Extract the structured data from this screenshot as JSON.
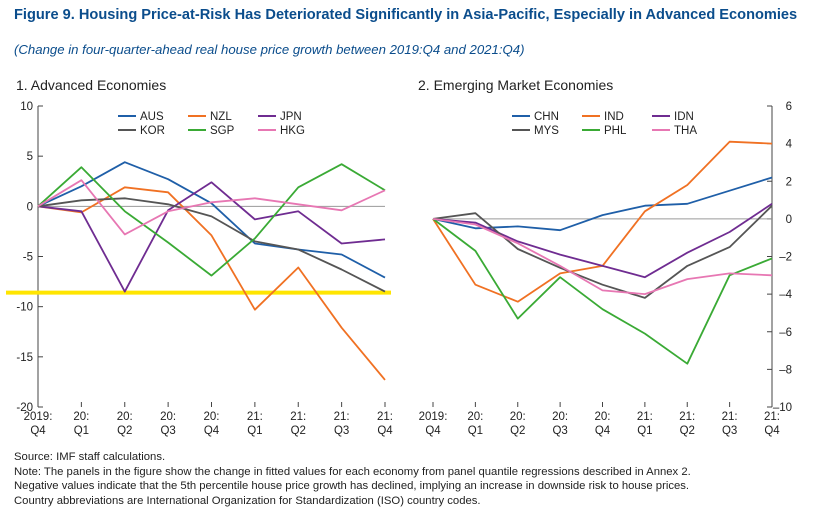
{
  "title": "Figure 9. Housing Price-at-Risk Has Deteriorated Significantly in Asia-Pacific, Especially in Advanced Economies",
  "subtitle": "(Change in four-quarter-ahead real house price growth between 2019:Q4 and 2021:Q4)",
  "notes": {
    "source": "Source: IMF staff calculations.",
    "line1": "Note: The panels in the figure show the change in fitted values for each economy from panel quantile regressions described in Annex 2.",
    "line2": "Negative values indicate that the 5th percentile house price growth has declined, implying an increase in downside risk to house prices.",
    "line3": "Country abbreviations are International Organization for Standardization (ISO) country codes."
  },
  "chart_data": [
    {
      "type": "line",
      "title": "1. Advanced Economies",
      "categories": [
        [
          "2019:",
          "Q4"
        ],
        [
          "20:",
          "Q1"
        ],
        [
          "20:",
          "Q2"
        ],
        [
          "20:",
          "Q3"
        ],
        [
          "20:",
          "Q4"
        ],
        [
          "21:",
          "Q1"
        ],
        [
          "21:",
          "Q2"
        ],
        [
          "21:",
          "Q3"
        ],
        [
          "21:",
          "Q4"
        ]
      ],
      "ylim": [
        -20,
        10
      ],
      "yticks": [
        10,
        5,
        0,
        -5,
        -10,
        -15,
        -20
      ],
      "ytick_labels": [
        "10",
        "5",
        "0",
        "-5",
        "-10",
        "-15",
        "-20"
      ],
      "axis_side": "left",
      "threshold": {
        "value": -8.6,
        "color": "#ffe500"
      },
      "series": [
        {
          "name": "AUS",
          "color": "#1f5fa8",
          "values": [
            0,
            2.0,
            4.4,
            2.7,
            0.3,
            -3.7,
            -4.3,
            -4.8,
            -7.1
          ]
        },
        {
          "name": "NZL",
          "color": "#f07123",
          "values": [
            0,
            -0.6,
            1.9,
            1.4,
            -2.9,
            -10.3,
            -6.1,
            -12.1,
            -17.3
          ]
        },
        {
          "name": "JPN",
          "color": "#6f2c91",
          "values": [
            0,
            -0.5,
            -8.5,
            -0.4,
            2.4,
            -1.3,
            -0.5,
            -3.7,
            -3.3
          ]
        },
        {
          "name": "KOR",
          "color": "#555555",
          "values": [
            0,
            0.6,
            0.8,
            0.2,
            -1.0,
            -3.5,
            -4.3,
            -6.3,
            -8.5
          ]
        },
        {
          "name": "SGP",
          "color": "#3aaa35",
          "values": [
            0,
            3.9,
            -0.5,
            -3.6,
            -6.9,
            -3.2,
            1.9,
            4.2,
            1.6
          ]
        },
        {
          "name": "HKG",
          "color": "#e777b3",
          "values": [
            0,
            2.6,
            -2.8,
            -0.5,
            0.4,
            0.8,
            0.2,
            -0.4,
            1.6
          ]
        }
      ]
    },
    {
      "type": "line",
      "title": "2. Emerging Market Economies",
      "categories": [
        [
          "2019:",
          "Q4"
        ],
        [
          "20:",
          "Q1"
        ],
        [
          "20:",
          "Q2"
        ],
        [
          "20:",
          "Q3"
        ],
        [
          "20:",
          "Q4"
        ],
        [
          "21:",
          "Q1"
        ],
        [
          "21:",
          "Q2"
        ],
        [
          "21:",
          "Q3"
        ],
        [
          "21:",
          "Q4"
        ]
      ],
      "ylim": [
        -10,
        6
      ],
      "yticks": [
        6,
        4,
        2,
        0,
        -2,
        -4,
        -6,
        -8,
        -10
      ],
      "ytick_labels": [
        "6",
        "4",
        "2",
        "0",
        "–2",
        "–4",
        "–6",
        "–8",
        "–10"
      ],
      "axis_side": "right",
      "series": [
        {
          "name": "CHN",
          "color": "#1f5fa8",
          "values": [
            0,
            -0.5,
            -0.4,
            -0.6,
            0.2,
            0.7,
            0.8,
            1.5,
            2.2
          ]
        },
        {
          "name": "IND",
          "color": "#f07123",
          "values": [
            0,
            -3.5,
            -4.4,
            -2.9,
            -2.5,
            0.4,
            1.8,
            4.1,
            4.0
          ]
        },
        {
          "name": "IDN",
          "color": "#6f2c91",
          "values": [
            0,
            -0.2,
            -1.2,
            -1.9,
            -2.5,
            -3.1,
            -1.8,
            -0.7,
            0.8
          ]
        },
        {
          "name": "MYS",
          "color": "#555555",
          "values": [
            0,
            0.3,
            -1.6,
            -2.6,
            -3.5,
            -4.2,
            -2.5,
            -1.5,
            0.7
          ]
        },
        {
          "name": "PHL",
          "color": "#3aaa35",
          "values": [
            0,
            -1.7,
            -5.3,
            -3.1,
            -4.8,
            -6.1,
            -7.7,
            -3.0,
            -2.1
          ]
        },
        {
          "name": "THA",
          "color": "#e777b3",
          "values": [
            0,
            -0.3,
            -1.3,
            -2.5,
            -3.8,
            -4.0,
            -3.2,
            -2.9,
            -3.0
          ]
        }
      ]
    }
  ]
}
